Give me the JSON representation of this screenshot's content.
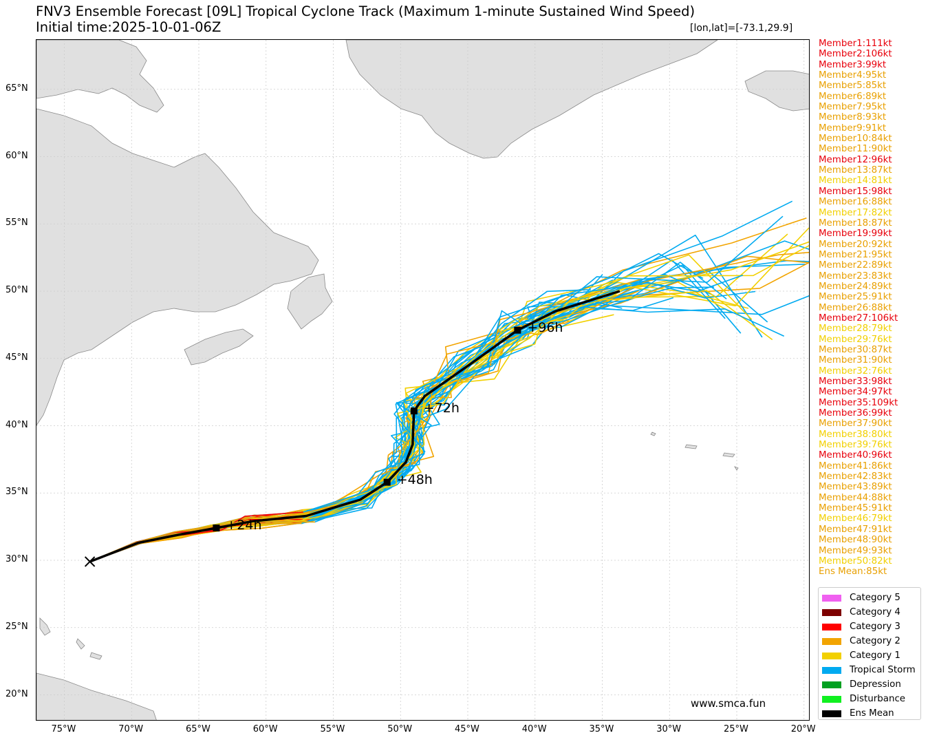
{
  "title": {
    "line1": "FNV3 Ensemble Forecast [09L] Tropical Cyclone Track (Maximum 1-minute Sustained Wind Speed)",
    "line2": "Initial time:2025-10-01-06Z"
  },
  "coordinate_readout": "[lon,lat]=[-73.1,29.9]",
  "watermark": "www.smca.fun",
  "axes": {
    "lon_ticks": [
      "75°W",
      "70°W",
      "65°W",
      "60°W",
      "55°W",
      "50°W",
      "45°W",
      "40°W",
      "35°W",
      "30°W",
      "25°W",
      "20°W"
    ],
    "lat_ticks": [
      "65°N",
      "60°N",
      "55°N",
      "50°N",
      "45°N",
      "40°N",
      "35°N",
      "30°N",
      "25°N",
      "20°N"
    ]
  },
  "members": [
    {
      "label": "Member1:111kt",
      "color": "#e8000b"
    },
    {
      "label": "Member2:106kt",
      "color": "#e8000b"
    },
    {
      "label": "Member3:99kt",
      "color": "#e8000b"
    },
    {
      "label": "Member4:95kt",
      "color": "#e9a000"
    },
    {
      "label": "Member5:85kt",
      "color": "#e9a000"
    },
    {
      "label": "Member6:89kt",
      "color": "#e9a000"
    },
    {
      "label": "Member7:95kt",
      "color": "#e9a000"
    },
    {
      "label": "Member8:93kt",
      "color": "#e9a000"
    },
    {
      "label": "Member9:91kt",
      "color": "#e9a000"
    },
    {
      "label": "Member10:84kt",
      "color": "#e9a000"
    },
    {
      "label": "Member11:90kt",
      "color": "#e9a000"
    },
    {
      "label": "Member12:96kt",
      "color": "#e8000b"
    },
    {
      "label": "Member13:87kt",
      "color": "#e9a000"
    },
    {
      "label": "Member14:81kt",
      "color": "#f2d000"
    },
    {
      "label": "Member15:98kt",
      "color": "#e8000b"
    },
    {
      "label": "Member16:88kt",
      "color": "#e9a000"
    },
    {
      "label": "Member17:82kt",
      "color": "#f2d000"
    },
    {
      "label": "Member18:87kt",
      "color": "#e9a000"
    },
    {
      "label": "Member19:99kt",
      "color": "#e8000b"
    },
    {
      "label": "Member20:92kt",
      "color": "#e9a000"
    },
    {
      "label": "Member21:95kt",
      "color": "#e9a000"
    },
    {
      "label": "Member22:89kt",
      "color": "#e9a000"
    },
    {
      "label": "Member23:83kt",
      "color": "#e9a000"
    },
    {
      "label": "Member24:89kt",
      "color": "#e9a000"
    },
    {
      "label": "Member25:91kt",
      "color": "#e9a000"
    },
    {
      "label": "Member26:88kt",
      "color": "#e9a000"
    },
    {
      "label": "Member27:106kt",
      "color": "#e8000b"
    },
    {
      "label": "Member28:79kt",
      "color": "#f2d000"
    },
    {
      "label": "Member29:76kt",
      "color": "#f2d000"
    },
    {
      "label": "Member30:87kt",
      "color": "#e9a000"
    },
    {
      "label": "Member31:90kt",
      "color": "#e9a000"
    },
    {
      "label": "Member32:76kt",
      "color": "#f2d000"
    },
    {
      "label": "Member33:98kt",
      "color": "#e8000b"
    },
    {
      "label": "Member34:97kt",
      "color": "#e8000b"
    },
    {
      "label": "Member35:109kt",
      "color": "#e8000b"
    },
    {
      "label": "Member36:99kt",
      "color": "#e8000b"
    },
    {
      "label": "Member37:90kt",
      "color": "#e9a000"
    },
    {
      "label": "Member38:80kt",
      "color": "#f2d000"
    },
    {
      "label": "Member39:76kt",
      "color": "#f2d000"
    },
    {
      "label": "Member40:96kt",
      "color": "#e8000b"
    },
    {
      "label": "Member41:86kt",
      "color": "#e9a000"
    },
    {
      "label": "Member42:83kt",
      "color": "#e9a000"
    },
    {
      "label": "Member43:89kt",
      "color": "#e9a000"
    },
    {
      "label": "Member44:88kt",
      "color": "#e9a000"
    },
    {
      "label": "Member45:91kt",
      "color": "#e9a000"
    },
    {
      "label": "Member46:79kt",
      "color": "#f2d000"
    },
    {
      "label": "Member47:91kt",
      "color": "#e9a000"
    },
    {
      "label": "Member48:90kt",
      "color": "#e9a000"
    },
    {
      "label": "Member49:93kt",
      "color": "#e9a000"
    },
    {
      "label": "Member50:82kt",
      "color": "#f2d000"
    },
    {
      "label": "Ens Mean:85kt",
      "color": "#e9a000"
    }
  ],
  "legend": [
    {
      "label": "Category 5",
      "color": "#f060f0"
    },
    {
      "label": "Category 4",
      "color": "#7d0000"
    },
    {
      "label": "Category 3",
      "color": "#ff0000"
    },
    {
      "label": "Category 2",
      "color": "#f2a400"
    },
    {
      "label": "Category 1",
      "color": "#f2d000"
    },
    {
      "label": "Tropical Storm",
      "color": "#00aaf0"
    },
    {
      "label": "Depression",
      "color": "#00a020"
    },
    {
      "label": "Disturbance",
      "color": "#10f020"
    },
    {
      "label": "Ens Mean",
      "color": "#000000"
    }
  ],
  "track_labels": {
    "h24": "+24h",
    "h48": "+48h",
    "h72": "+72h",
    "h96": "+96h"
  },
  "ens_mean_track": [
    [
      -73.1,
      29.9
    ],
    [
      -69.5,
      31.3
    ],
    [
      -66.5,
      31.9
    ],
    [
      -63.7,
      32.4
    ],
    [
      -61,
      32.9
    ],
    [
      -57,
      33.3
    ],
    [
      -53,
      34.5
    ],
    [
      -51,
      35.8
    ],
    [
      -49.6,
      37.3
    ],
    [
      -49.1,
      38.6
    ],
    [
      -49,
      41.1
    ],
    [
      -48.2,
      42.2
    ],
    [
      -44.5,
      44.8
    ],
    [
      -41.3,
      47.1
    ],
    [
      -38.5,
      48.5
    ],
    [
      -33.7,
      50
    ]
  ],
  "mean_markers": [
    [
      -63.7,
      32.4
    ],
    [
      -51,
      35.8
    ],
    [
      -49,
      41.1
    ],
    [
      -41.3,
      47.1
    ]
  ],
  "start_point": [
    -73.1,
    29.9
  ]
}
